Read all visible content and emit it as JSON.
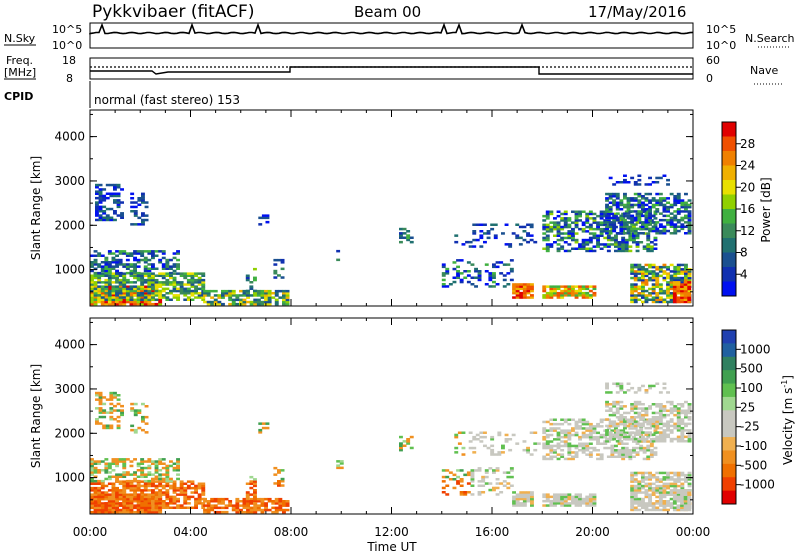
{
  "header": {
    "station": "Pykkvibaer (fitACF)",
    "beam": "Beam 00",
    "date": "17/May/2016"
  },
  "top_panels": {
    "nsky_label": "N.Sky",
    "nsearch_label": "N.Search",
    "nsky_ticks_left": [
      "10^5",
      "10^0"
    ],
    "nsky_ticks_right": [
      "10^5",
      "10^0"
    ],
    "freq_label_line1": "Freq.",
    "freq_label_line2": "[MHz]",
    "freq_ticks": [
      "18",
      "8"
    ],
    "nave_label": "Nave",
    "nave_ticks": [
      "60",
      "0"
    ],
    "cpid_label": "CPID",
    "cpid_text": "normal (fast stereo) 153"
  },
  "chart_data": [
    {
      "type": "heatmap",
      "name": "power",
      "xlabel": "",
      "ylabel": "Slant Range [km]",
      "xlim": [
        0,
        24
      ],
      "ylim": [
        180,
        4600
      ],
      "yticks": [
        "1000",
        "2000",
        "3000",
        "4000"
      ],
      "colorbar_label": "Power [dB]",
      "colorbar_ticks": [
        "28",
        "24",
        "20",
        "16",
        "12",
        "8",
        "4"
      ],
      "colorbar_colors": [
        "#e00000",
        "#f05000",
        "#f08000",
        "#f0b000",
        "#e8e000",
        "#90d000",
        "#40b040",
        "#3a8a5a",
        "#207070",
        "#1a5090",
        "#1030b0",
        "#0010f0"
      ]
    },
    {
      "type": "heatmap",
      "name": "velocity",
      "xlabel": "Time UT",
      "ylabel": "Slant Range [km]",
      "xlim": [
        0,
        24
      ],
      "ylim": [
        180,
        4600
      ],
      "xticks": [
        "00:00",
        "04:00",
        "08:00",
        "12:00",
        "16:00",
        "20:00",
        "00:00"
      ],
      "yticks": [
        "1000",
        "2000",
        "3000",
        "4000"
      ],
      "colorbar_label": "Velocity [m s",
      "colorbar_label_sup": "-1",
      "colorbar_label_end": "]",
      "colorbar_ticks": [
        "1000",
        "500",
        "100",
        "25",
        "-25",
        "-100",
        "-500",
        "-1000"
      ],
      "colorbar_colors": [
        "#2040b0",
        "#2060a0",
        "#308060",
        "#40a050",
        "#60c050",
        "#a0d890",
        "#c8c8c0",
        "#c8c8c0",
        "#f0b050",
        "#f09020",
        "#f07000",
        "#f04000",
        "#e00000"
      ]
    }
  ]
}
